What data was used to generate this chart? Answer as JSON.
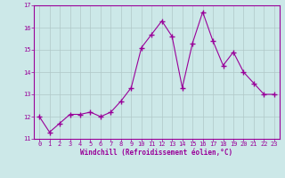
{
  "x": [
    0,
    1,
    2,
    3,
    4,
    5,
    6,
    7,
    8,
    9,
    10,
    11,
    12,
    13,
    14,
    15,
    16,
    17,
    18,
    19,
    20,
    21,
    22,
    23
  ],
  "y": [
    12.0,
    11.3,
    11.7,
    12.1,
    12.1,
    12.2,
    12.0,
    12.2,
    12.7,
    13.3,
    15.1,
    15.7,
    16.3,
    15.6,
    13.3,
    15.3,
    16.7,
    15.4,
    14.3,
    14.9,
    14.0,
    13.5,
    13.0,
    13.0
  ],
  "line_color": "#990099",
  "marker": "+",
  "markersize": 4,
  "linewidth": 0.8,
  "xlabel": "Windchill (Refroidissement éolien,°C)",
  "xlabel_color": "#990099",
  "background_color": "#cce8e8",
  "grid_color": "#b0c8c8",
  "tick_color": "#990099",
  "spine_color": "#990099",
  "ylim": [
    11,
    17
  ],
  "xlim": [
    -0.5,
    23.5
  ],
  "yticks": [
    11,
    12,
    13,
    14,
    15,
    16,
    17
  ],
  "xticks": [
    0,
    1,
    2,
    3,
    4,
    5,
    6,
    7,
    8,
    9,
    10,
    11,
    12,
    13,
    14,
    15,
    16,
    17,
    18,
    19,
    20,
    21,
    22,
    23
  ],
  "xlabel_fontsize": 5.5,
  "tick_fontsize": 5.0
}
